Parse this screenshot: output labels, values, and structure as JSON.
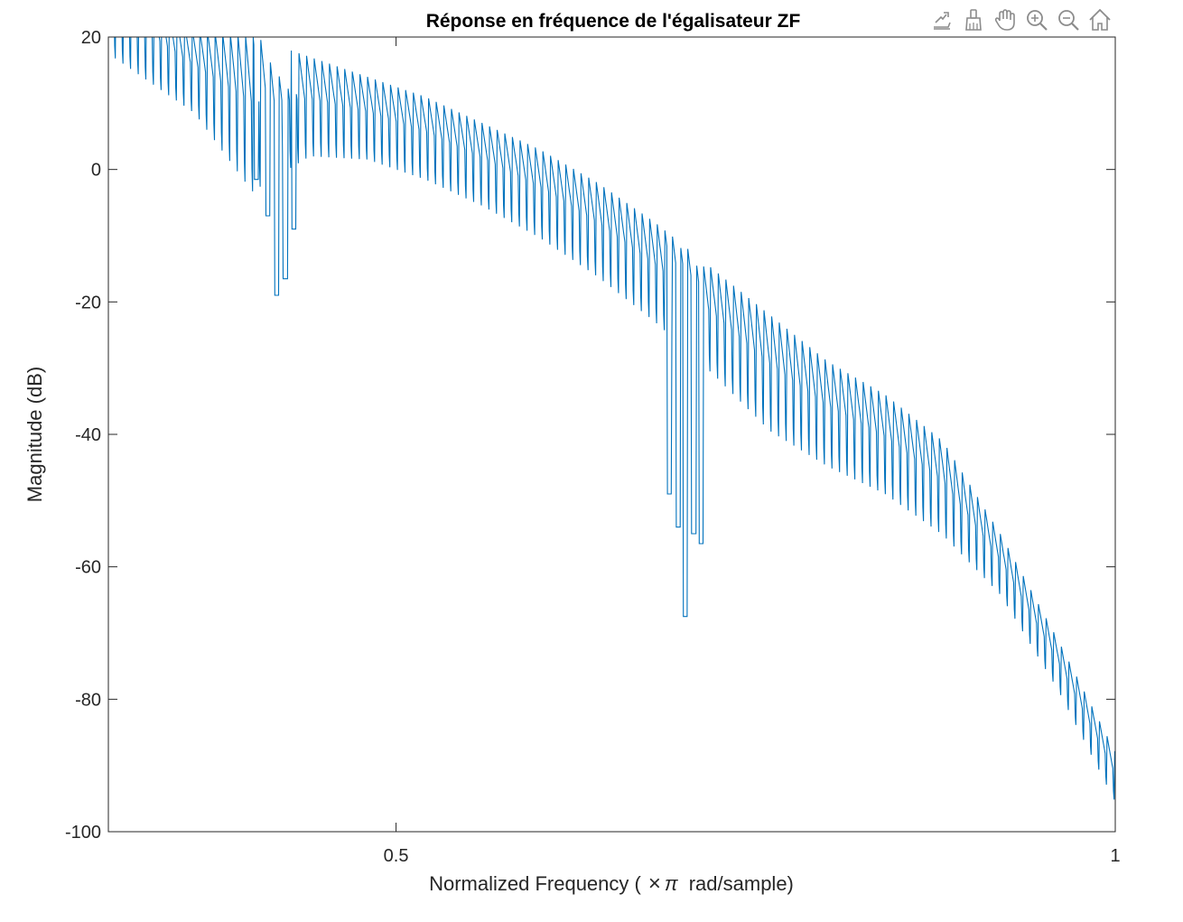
{
  "toolbar": {
    "items": [
      {
        "name": "export-icon"
      },
      {
        "name": "brush-icon"
      },
      {
        "name": "pan-hand-icon"
      },
      {
        "name": "zoom-in-icon"
      },
      {
        "name": "zoom-out-icon"
      },
      {
        "name": "home-icon"
      }
    ]
  },
  "chart_data": {
    "type": "line",
    "title": "Réponse en fréquence de l'égalisateur ZF",
    "xlabel_main": "Normalized  Frequency  (",
    "xlabel_times": "×",
    "xlabel_pi": "π",
    "xlabel_rest": " rad/sample)",
    "ylabel": "Magnitude (dB)",
    "xlim": [
      0.3,
      1.0
    ],
    "ylim": [
      -100,
      20
    ],
    "x_ticks": [
      0.5,
      1
    ],
    "x_tick_labels": [
      "0.5",
      "1"
    ],
    "y_ticks": [
      20,
      0,
      -20,
      -40,
      -60,
      -80,
      -100
    ],
    "y_tick_labels": [
      "20",
      "0",
      "-20",
      "-40",
      "-60",
      "-80",
      "-100"
    ],
    "line_color": "#0072BD",
    "series": [
      {
        "envelope_x": [
          0.3,
          0.36,
          0.4,
          0.44,
          0.48,
          0.52,
          0.56,
          0.6,
          0.64,
          0.68,
          0.72,
          0.76,
          0.8,
          0.84,
          0.88,
          0.92,
          0.96,
          1.0
        ],
        "envelope_upper": [
          30,
          21,
          20,
          17,
          14,
          11,
          7,
          3,
          -2,
          -8,
          -15,
          -22,
          -29,
          -34,
          -41,
          -55,
          -71,
          -88
        ],
        "envelope_lower": [
          15,
          6,
          -8,
          -1,
          -1,
          -4,
          -8,
          -13,
          -19,
          -26,
          -34,
          -43,
          -48,
          -52,
          -58,
          -66,
          -80,
          -97
        ],
        "ripple_period": 0.0053,
        "notches": [
          {
            "x": 0.417,
            "y": -19
          },
          {
            "x": 0.411,
            "y": -7
          },
          {
            "x": 0.423,
            "y": -16.5
          },
          {
            "x": 0.403,
            "y": -1.5
          },
          {
            "x": 0.429,
            "y": -9
          },
          {
            "x": 0.701,
            "y": -67.5
          },
          {
            "x": 0.696,
            "y": -54
          },
          {
            "x": 0.707,
            "y": -55
          },
          {
            "x": 0.69,
            "y": -49
          },
          {
            "x": 0.712,
            "y": -56.5
          }
        ]
      }
    ]
  }
}
